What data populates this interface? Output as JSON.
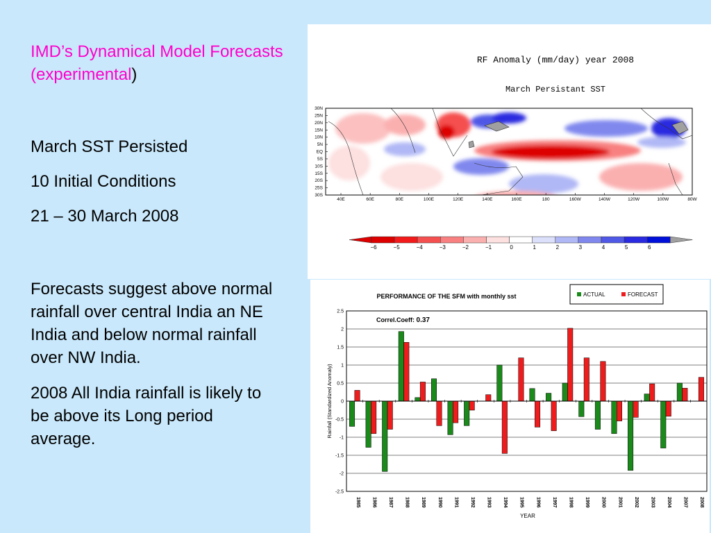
{
  "slide": {
    "title": "IMD’s Dynamical Model Forecasts (experimental",
    "title_paren": ")",
    "conditions": [
      "March SST Persisted",
      "10 Initial Conditions",
      "21 – 30 March 2008"
    ],
    "paragraphs": [
      "Forecasts suggest above normal rainfall over central India an NE India and below normal rainfall over NW India.",
      "2008 All India rainfall is likely to be above its Long period average."
    ]
  },
  "map": {
    "title": "RF Anomaly (mm/day) year 2008",
    "subtitle": "March Persistant SST",
    "lat_labels": [
      "30N",
      "25N",
      "20N",
      "15N",
      "10N",
      "5N",
      "EQ",
      "5S",
      "10S",
      "15S",
      "20S",
      "25S",
      "30S"
    ],
    "lon_labels": [
      "40E",
      "60E",
      "80E",
      "100E",
      "120E",
      "140E",
      "160E",
      "180",
      "160W",
      "140W",
      "120W",
      "100W",
      "80W"
    ],
    "colorbar_labels": [
      "−6",
      "−5",
      "−4",
      "−3",
      "−2",
      "−1",
      "0",
      "1",
      "2",
      "3",
      "4",
      "5",
      "6"
    ],
    "colorbar_colors": [
      "#dd0000",
      "#f21a1a",
      "#f55050",
      "#f88080",
      "#fbb0b0",
      "#fde0e0",
      "#ffffff",
      "#dce0fb",
      "#b0b8f5",
      "#8088ee",
      "#5058e6",
      "#2a2ae0",
      "#0010d8"
    ]
  },
  "chart_data": {
    "type": "bar",
    "title": "PERFORMANCE OF THE SFM with monthly sst",
    "annotation_label": "Correl.Coeff:",
    "annotation_value": "0.37",
    "xlabel": "YEAR",
    "ylabel": "Rainfall (Standardized Anomaly)",
    "ylim": [
      -2.5,
      2.5
    ],
    "yticks": [
      "2.5",
      "2",
      "1.5",
      "1",
      "0.5",
      "0",
      "-0.5",
      "-1",
      "-1.5",
      "-2",
      "-2.5"
    ],
    "grid": true,
    "legend_position": "top-right",
    "categories": [
      "1985",
      "1986",
      "1987",
      "1988",
      "1989",
      "1990",
      "1991",
      "1992",
      "1993",
      "1994",
      "1995",
      "1996",
      "1997",
      "1998",
      "1999",
      "2000",
      "2001",
      "2002",
      "2003",
      "2004",
      "2007",
      "2008"
    ],
    "series": [
      {
        "name": "ACTUAL",
        "color": "#1a8a1a",
        "values": [
          -0.7,
          -1.28,
          -1.95,
          1.93,
          0.1,
          0.62,
          -0.93,
          -0.68,
          null,
          1.0,
          null,
          0.35,
          0.22,
          0.5,
          -0.43,
          -0.78,
          -0.9,
          -1.92,
          0.2,
          -1.3,
          0.5,
          null
        ]
      },
      {
        "name": "FORECAST",
        "color": "#ee1c1c",
        "values": [
          0.3,
          -0.9,
          -0.78,
          1.63,
          0.53,
          -0.68,
          -0.6,
          -0.25,
          0.18,
          -1.45,
          1.2,
          -0.72,
          -0.82,
          2.02,
          1.2,
          1.1,
          -0.55,
          -0.45,
          0.48,
          -0.42,
          0.36,
          0.66
        ]
      }
    ]
  }
}
